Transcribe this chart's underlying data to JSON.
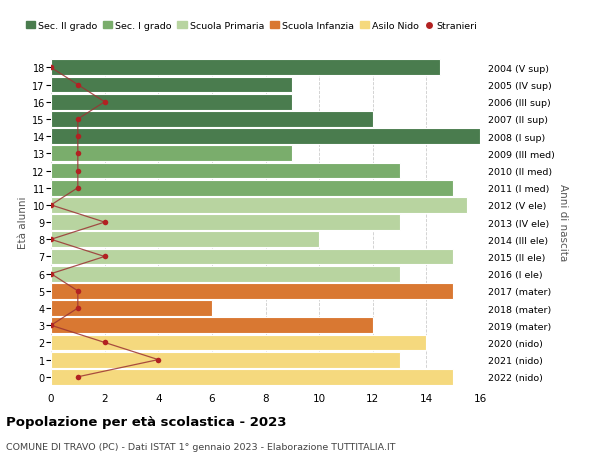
{
  "ages": [
    18,
    17,
    16,
    15,
    14,
    13,
    12,
    11,
    10,
    9,
    8,
    7,
    6,
    5,
    4,
    3,
    2,
    1,
    0
  ],
  "right_labels": [
    "2004 (V sup)",
    "2005 (IV sup)",
    "2006 (III sup)",
    "2007 (II sup)",
    "2008 (I sup)",
    "2009 (III med)",
    "2010 (II med)",
    "2011 (I med)",
    "2012 (V ele)",
    "2013 (IV ele)",
    "2014 (III ele)",
    "2015 (II ele)",
    "2016 (I ele)",
    "2017 (mater)",
    "2018 (mater)",
    "2019 (mater)",
    "2020 (nido)",
    "2021 (nido)",
    "2022 (nido)"
  ],
  "bar_values": [
    14.5,
    9.0,
    9.0,
    12.0,
    16.0,
    9.0,
    13.0,
    15.0,
    15.5,
    13.0,
    10.0,
    15.0,
    13.0,
    15.0,
    6.0,
    12.0,
    14.0,
    13.0,
    15.0
  ],
  "bar_colors": [
    "#4a7c4e",
    "#4a7c4e",
    "#4a7c4e",
    "#4a7c4e",
    "#4a7c4e",
    "#7aad6c",
    "#7aad6c",
    "#7aad6c",
    "#b8d4a0",
    "#b8d4a0",
    "#b8d4a0",
    "#b8d4a0",
    "#b8d4a0",
    "#d97832",
    "#d97832",
    "#d97832",
    "#f5d97e",
    "#f5d97e",
    "#f5d97e"
  ],
  "stranieri_x": [
    0,
    1,
    2,
    1,
    1,
    1,
    1,
    1,
    0,
    2,
    0,
    2,
    0,
    1,
    1,
    0,
    2,
    4,
    1
  ],
  "xlim": [
    0,
    16
  ],
  "ylim": [
    -0.5,
    18.5
  ],
  "ylabel_left": "Età alunni",
  "ylabel_right": "Anni di nascita",
  "title": "Popolazione per età scolastica - 2023",
  "subtitle": "COMUNE DI TRAVO (PC) - Dati ISTAT 1° gennaio 2023 - Elaborazione TUTTITALIA.IT",
  "legend_labels": [
    "Sec. II grado",
    "Sec. I grado",
    "Scuola Primaria",
    "Scuola Infanzia",
    "Asilo Nido",
    "Stranieri"
  ],
  "legend_colors": [
    "#4a7c4e",
    "#7aad6c",
    "#b8d4a0",
    "#d97832",
    "#f5d97e",
    "#b22222"
  ],
  "background_color": "#ffffff",
  "grid_color": "#cccccc",
  "bar_background": "#f0f0f0",
  "stranieri_line_color": "#9b3333",
  "stranieri_dot_color": "#b22222"
}
